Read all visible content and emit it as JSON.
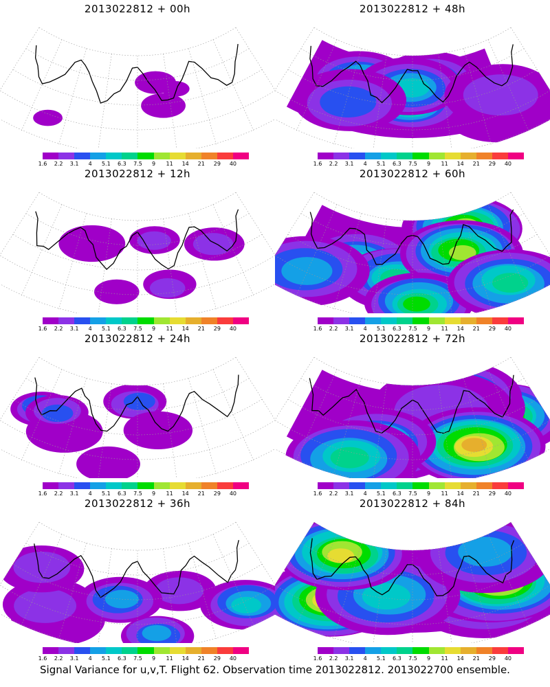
{
  "panels": [
    {
      "title": "2013022812 + 00h",
      "lead_hours": 0
    },
    {
      "title": "2013022812 + 48h",
      "lead_hours": 48
    },
    {
      "title": "2013022812 + 12h",
      "lead_hours": 12
    },
    {
      "title": "2013022812 + 60h",
      "lead_hours": 60
    },
    {
      "title": "2013022812 + 24h",
      "lead_hours": 24
    },
    {
      "title": "2013022812 + 72h",
      "lead_hours": 72
    },
    {
      "title": "2013022812 + 36h",
      "lead_hours": 36
    },
    {
      "title": "2013022812 + 84h",
      "lead_hours": 84
    }
  ],
  "colorbar": {
    "labels": [
      "1.6",
      "2.2",
      "3.1",
      "4",
      "5.1",
      "6.3",
      "7.5",
      "9",
      "11",
      "14",
      "21",
      "29",
      "40"
    ],
    "colors": [
      "#a000c8",
      "#8c32e6",
      "#2850f0",
      "#14a0e6",
      "#00c8c8",
      "#00d28c",
      "#00dc00",
      "#a0e632",
      "#e6dc32",
      "#e6af2d",
      "#f08228",
      "#fa3c3c",
      "#f00082"
    ]
  },
  "caption": "Signal Variance for u,v,T. Flight 62. Observation time 2013022812. 2013022700 ensemble."
}
